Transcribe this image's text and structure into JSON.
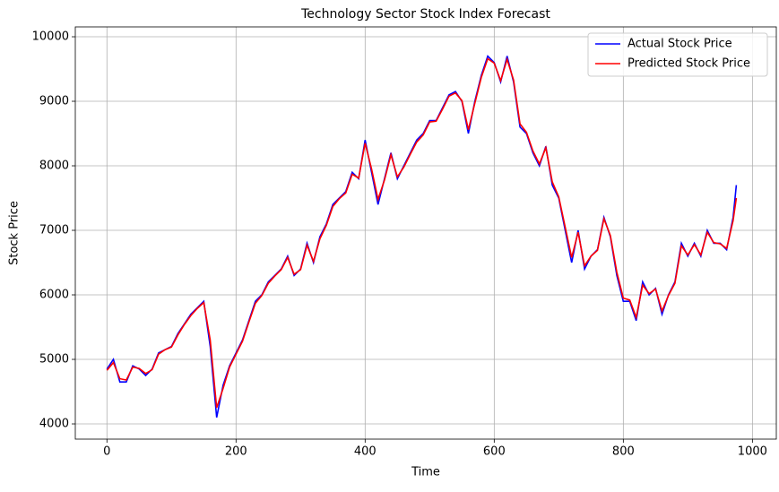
{
  "chart_data": {
    "type": "line",
    "title": "Technology Sector Stock Index Forecast",
    "x_label": "Time",
    "y_label": "Stock Price",
    "x": [
      0,
      10,
      20,
      30,
      40,
      50,
      60,
      70,
      80,
      90,
      100,
      110,
      120,
      130,
      140,
      150,
      160,
      170,
      180,
      190,
      200,
      210,
      220,
      230,
      240,
      250,
      260,
      270,
      280,
      290,
      300,
      310,
      320,
      330,
      340,
      350,
      360,
      370,
      380,
      390,
      400,
      410,
      420,
      430,
      440,
      450,
      460,
      470,
      480,
      490,
      500,
      510,
      520,
      530,
      540,
      550,
      560,
      570,
      580,
      590,
      600,
      610,
      620,
      630,
      640,
      650,
      660,
      670,
      680,
      690,
      700,
      710,
      720,
      730,
      740,
      750,
      760,
      770,
      780,
      790,
      800,
      810,
      820,
      830,
      840,
      850,
      860,
      870,
      880,
      890,
      900,
      910,
      920,
      930,
      940,
      950,
      960,
      970,
      975
    ],
    "series": [
      {
        "name": "Actual Stock Price",
        "color": "#0000ff",
        "values": [
          4850,
          5000,
          4650,
          4650,
          4900,
          4850,
          4750,
          4850,
          5100,
          5150,
          5200,
          5400,
          5550,
          5700,
          5800,
          5900,
          5200,
          4100,
          4600,
          4900,
          5100,
          5300,
          5600,
          5900,
          6000,
          6200,
          6300,
          6400,
          6600,
          6300,
          6400,
          6800,
          6500,
          6900,
          7100,
          7400,
          7500,
          7600,
          7900,
          7800,
          8400,
          7900,
          7400,
          7800,
          8200,
          7800,
          8000,
          8200,
          8400,
          8500,
          8700,
          8700,
          8900,
          9100,
          9150,
          9000,
          8500,
          9000,
          9400,
          9700,
          9600,
          9300,
          9700,
          9300,
          8600,
          8500,
          8200,
          8000,
          8300,
          7700,
          7500,
          7000,
          6500,
          7000,
          6400,
          6600,
          6700,
          7200,
          6900,
          6300,
          5900,
          5900,
          5600,
          6200,
          6000,
          6100,
          5700,
          6000,
          6200,
          6800,
          6600,
          6800,
          6600,
          7000,
          6800,
          6800,
          6700,
          7200,
          7700
        ]
      },
      {
        "name": "Predicted Stock Price",
        "color": "#ff0000",
        "values": [
          4830,
          4950,
          4700,
          4680,
          4880,
          4860,
          4780,
          4840,
          5080,
          5150,
          5190,
          5380,
          5540,
          5680,
          5790,
          5880,
          5300,
          4250,
          4550,
          4880,
          5080,
          5280,
          5580,
          5870,
          5990,
          6180,
          6290,
          6390,
          6580,
          6320,
          6390,
          6770,
          6520,
          6870,
          7080,
          7370,
          7490,
          7580,
          7870,
          7810,
          8350,
          7950,
          7480,
          7780,
          8170,
          7830,
          7980,
          8180,
          8370,
          8480,
          8680,
          8690,
          8880,
          9080,
          9130,
          9010,
          8560,
          8970,
          9370,
          9660,
          9590,
          9320,
          9650,
          9330,
          8650,
          8520,
          8230,
          8030,
          8280,
          7750,
          7520,
          7050,
          6580,
          6970,
          6450,
          6600,
          6690,
          7180,
          6920,
          6350,
          5950,
          5920,
          5650,
          6150,
          6020,
          6090,
          5750,
          5990,
          6180,
          6760,
          6620,
          6780,
          6620,
          6970,
          6810,
          6790,
          6720,
          7150,
          7500
        ]
      }
    ],
    "xlim": [
      -49,
      1037
    ],
    "ylim": [
      3764,
      10153
    ],
    "xticks": [
      0,
      200,
      400,
      600,
      800,
      1000
    ],
    "yticks": [
      4000,
      5000,
      6000,
      7000,
      8000,
      9000,
      10000
    ],
    "grid": true,
    "legend": "upper right"
  }
}
